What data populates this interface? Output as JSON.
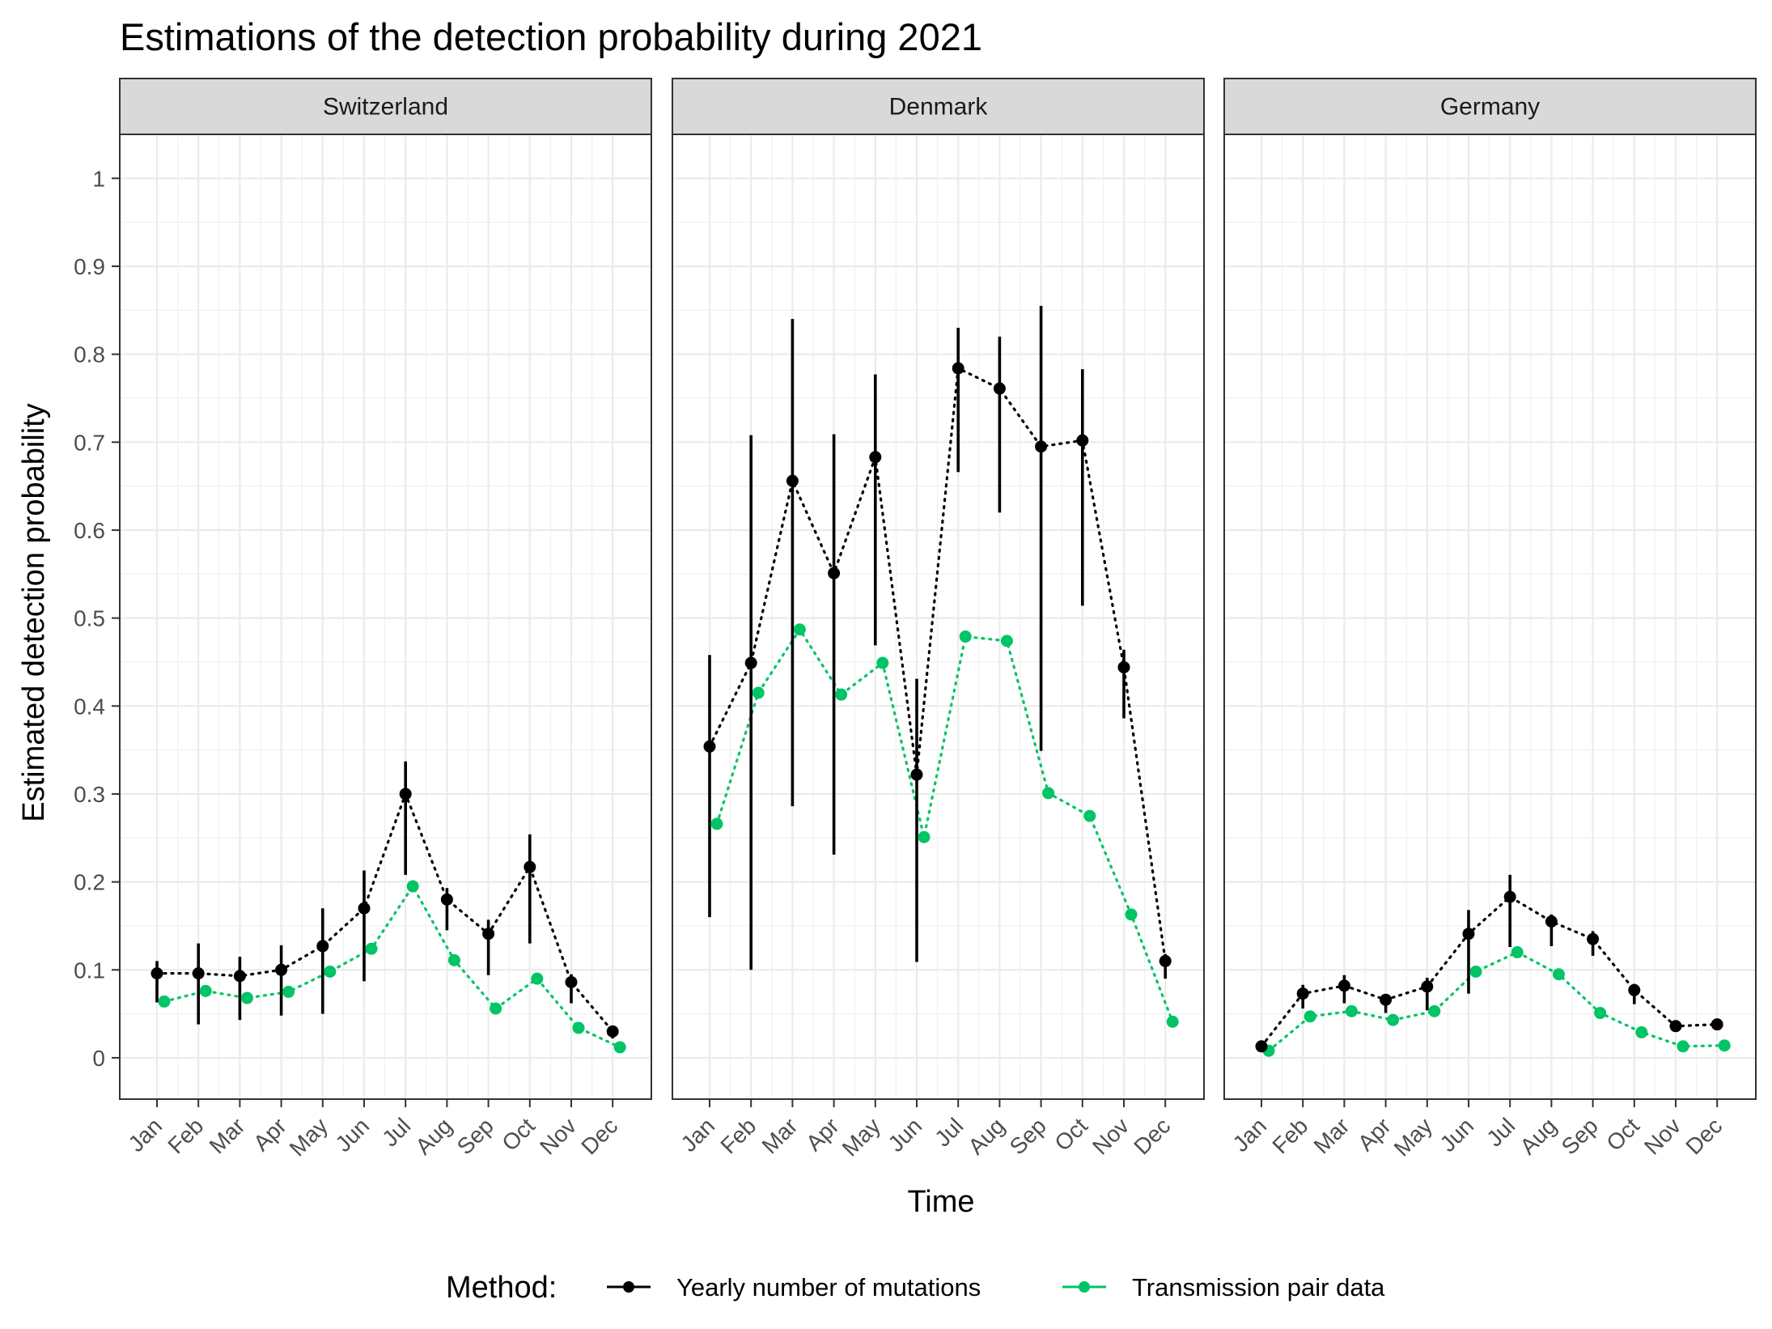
{
  "chart_data": {
    "type": "line",
    "title": "Estimations of the detection probability during 2021",
    "xlabel": "Time",
    "ylabel": "Estimated detection probability",
    "categories": [
      "Jan",
      "Feb",
      "Mar",
      "Apr",
      "May",
      "Jun",
      "Jul",
      "Aug",
      "Sep",
      "Oct",
      "Nov",
      "Dec"
    ],
    "yticks": [
      "0",
      "0.1",
      "0.2",
      "0.3",
      "0.4",
      "0.5",
      "0.6",
      "0.7",
      "0.8",
      "0.9",
      "1"
    ],
    "ylim": [
      -0.047,
      1.05
    ],
    "grid": true,
    "legend": {
      "title": "Method:",
      "position": "bottom",
      "entries": [
        "Yearly number of mutations",
        "Transmission pair data"
      ]
    },
    "colors": {
      "mutations": "#000000",
      "transmission": "#00C465"
    },
    "panels": [
      {
        "name": "Switzerland",
        "series": [
          {
            "name": "Yearly number of mutations",
            "values": [
              0.096,
              0.096,
              0.093,
              0.1,
              0.127,
              0.17,
              0.3,
              0.18,
              0.141,
              0.217,
              0.086,
              0.03
            ],
            "lower": [
              0.063,
              0.038,
              0.043,
              0.048,
              0.05,
              0.087,
              0.208,
              0.145,
              0.094,
              0.13,
              0.062,
              0.022
            ],
            "upper": [
              0.11,
              0.13,
              0.115,
              0.128,
              0.17,
              0.213,
              0.337,
              0.193,
              0.157,
              0.254,
              0.095,
              0.035
            ]
          },
          {
            "name": "Transmission pair data",
            "values": [
              0.064,
              0.076,
              0.068,
              0.075,
              0.098,
              0.124,
              0.195,
              0.111,
              0.056,
              0.09,
              0.034,
              0.012
            ]
          }
        ]
      },
      {
        "name": "Denmark",
        "series": [
          {
            "name": "Yearly number of mutations",
            "values": [
              0.354,
              0.449,
              0.656,
              0.551,
              0.683,
              0.322,
              0.784,
              0.761,
              0.695,
              0.702,
              0.444,
              0.11
            ],
            "lower": [
              0.16,
              0.1,
              0.286,
              0.231,
              0.469,
              0.109,
              0.666,
              0.62,
              0.349,
              0.514,
              0.386,
              0.09
            ],
            "upper": [
              0.458,
              0.708,
              0.84,
              0.709,
              0.777,
              0.431,
              0.83,
              0.82,
              0.855,
              0.783,
              0.464,
              0.118
            ]
          },
          {
            "name": "Transmission pair data",
            "values": [
              0.266,
              0.415,
              0.487,
              0.413,
              0.449,
              0.251,
              0.479,
              0.474,
              0.301,
              0.275,
              0.163,
              0.041
            ]
          }
        ]
      },
      {
        "name": "Germany",
        "series": [
          {
            "name": "Yearly number of mutations",
            "values": [
              0.013,
              0.073,
              0.082,
              0.066,
              0.081,
              0.141,
              0.183,
              0.155,
              0.135,
              0.077,
              0.036,
              0.038
            ],
            "lower": [
              0.011,
              0.056,
              0.062,
              0.051,
              0.054,
              0.073,
              0.126,
              0.127,
              0.116,
              0.061,
              0.03,
              0.034
            ],
            "upper": [
              0.014,
              0.083,
              0.094,
              0.072,
              0.091,
              0.168,
              0.208,
              0.163,
              0.144,
              0.084,
              0.04,
              0.042
            ]
          },
          {
            "name": "Transmission pair data",
            "values": [
              0.008,
              0.047,
              0.053,
              0.043,
              0.053,
              0.098,
              0.12,
              0.095,
              0.051,
              0.029,
              0.013,
              0.014
            ]
          }
        ]
      }
    ]
  }
}
